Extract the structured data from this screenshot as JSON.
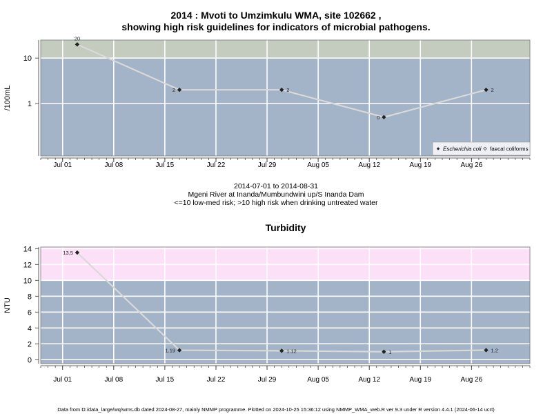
{
  "header": {
    "title_line1": "2014 : Mvoti to Umzimkulu WMA, site 102662 ,",
    "title_line2": "showing high risk guidelines for indicators of microbial pathogens."
  },
  "subtitle": {
    "date_range": "2014-07-01 to 2014-08-31",
    "site": "Mgeni River at Inanda/Mumbundwini up/S Inanda Dam",
    "risk_note": "<=10 low-med risk; >10 high risk when drinking untreated water"
  },
  "footer": {
    "text": "Data from D:/data_large/wq/wms.db dated 2024-08-27, mainly NMMP programme. Plotted on 2024-10-25 15:36:12 using NMMP_WMA_web.R ver 9.3 under R version 4.4.1 (2024-06-14 ucrt)"
  },
  "colors": {
    "low_risk_band": "#a3b3c8",
    "pathogen_high_band": "#c3ccbf",
    "turbidity_high_band": "#fce0f8",
    "series_line": "#d9d9d9",
    "marker": "#222222",
    "grid": "#ffffff"
  },
  "chart_data": [
    {
      "type": "line",
      "title": "",
      "ylabel": "/100mL",
      "xlabel": "",
      "y_scale": "log",
      "ylim": [
        0.07,
        25
      ],
      "xlim": [
        "2014-06-28",
        "2014-09-03"
      ],
      "x_ticks": [
        "2014-07-01",
        "2014-07-08",
        "2014-07-15",
        "2014-07-22",
        "2014-07-29",
        "2014-08-05",
        "2014-08-12",
        "2014-08-19",
        "2014-08-26"
      ],
      "x_tick_labels": [
        "Jul 01",
        "Jul 08",
        "Jul 15",
        "Jul 22",
        "Jul 29",
        "Aug 05",
        "Aug 12",
        "Aug 19",
        "Aug 26"
      ],
      "y_ticks": [
        1,
        10
      ],
      "y_tick_labels": [
        "1",
        "10"
      ],
      "threshold": 10,
      "grid": true,
      "legend_position": "bottom-right",
      "legend": [
        {
          "label": "Escherichia coli",
          "marker": "filled-diamond"
        },
        {
          "label": "faecal coliforms",
          "marker": "open-diamond"
        }
      ],
      "series": [
        {
          "name": "Escherichia coli",
          "x": [
            "2014-07-03",
            "2014-07-17",
            "2014-07-31",
            "2014-08-14",
            "2014-08-28"
          ],
          "y": [
            20,
            2,
            2,
            0.5,
            2
          ],
          "labels": [
            "20",
            "2",
            "2",
            "0",
            "2"
          ],
          "label_side": [
            "above",
            "left",
            "right",
            "left",
            "right"
          ]
        }
      ]
    },
    {
      "type": "line",
      "title": "Turbidity",
      "ylabel": "NTU",
      "xlabel": "",
      "y_scale": "linear",
      "ylim": [
        -0.5,
        14.2
      ],
      "xlim": [
        "2014-06-28",
        "2014-09-03"
      ],
      "x_ticks": [
        "2014-07-01",
        "2014-07-08",
        "2014-07-15",
        "2014-07-22",
        "2014-07-29",
        "2014-08-05",
        "2014-08-12",
        "2014-08-19",
        "2014-08-26"
      ],
      "x_tick_labels": [
        "Jul 01",
        "Jul 08",
        "Jul 15",
        "Jul 22",
        "Jul 29",
        "Aug 05",
        "Aug 12",
        "Aug 19",
        "Aug 26"
      ],
      "y_ticks": [
        0,
        2,
        4,
        6,
        8,
        10,
        12,
        14
      ],
      "y_tick_labels": [
        "0",
        "2",
        "4",
        "6",
        "8",
        "10",
        "12",
        "14"
      ],
      "threshold": 10,
      "grid": true,
      "series": [
        {
          "x": [
            "2014-07-03",
            "2014-07-17",
            "2014-07-31",
            "2014-08-14",
            "2014-08-28"
          ],
          "y": [
            13.5,
            1.19,
            1.12,
            1,
            1.2
          ],
          "labels": [
            "13.5",
            "1.19",
            "1.12",
            "1",
            "1.2"
          ],
          "label_side": [
            "left",
            "left",
            "right",
            "right",
            "right"
          ]
        }
      ]
    }
  ]
}
